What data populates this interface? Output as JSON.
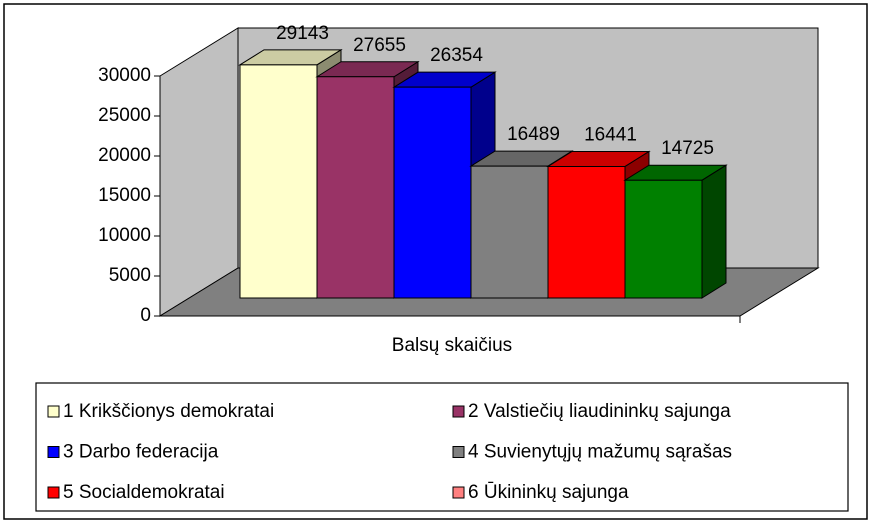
{
  "chart_data": {
    "type": "bar",
    "categories": [
      "Balsų skaičius"
    ],
    "series": [
      {
        "name": "1 Krikščionys demokratai",
        "color": "#ffffcc",
        "values": [
          29143
        ]
      },
      {
        "name": "2 Valstiečių liaudininkų sajunga",
        "color": "#993366",
        "values": [
          27655
        ]
      },
      {
        "name": "3 Darbo federacija",
        "color": "#0000ff",
        "values": [
          26354
        ]
      },
      {
        "name": "4 Suvienytųjų mažumų sąrašas",
        "color": "#808080",
        "values": [
          16489
        ]
      },
      {
        "name": "5 Socialdemokratai",
        "color": "#ff0000",
        "values": [
          16441
        ]
      },
      {
        "name": "6 Ūkininkų sajunga",
        "color": "#ff8080",
        "values": [
          null
        ]
      },
      {
        "color": "#008000",
        "values": [
          14725
        ]
      }
    ],
    "ylim": [
      0,
      30000
    ],
    "yticks": [
      0,
      5000,
      10000,
      15000,
      20000,
      25000,
      30000
    ]
  }
}
